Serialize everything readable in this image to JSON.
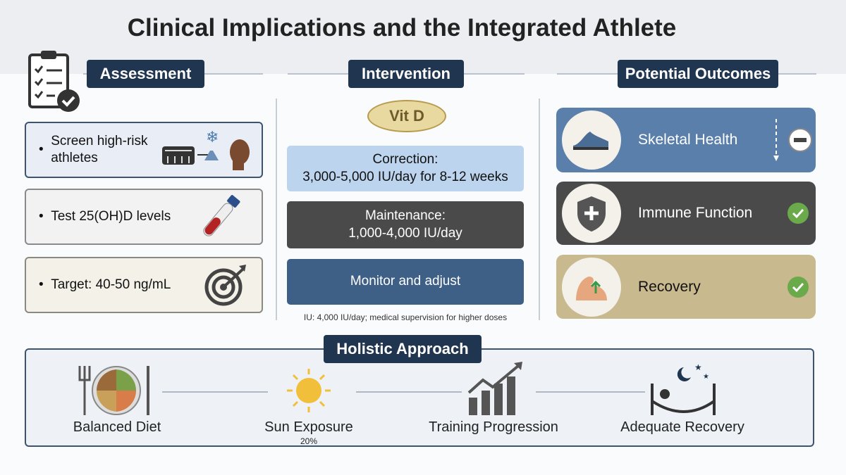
{
  "title": "Clinical Implications and the Integrated Athlete",
  "assessment": {
    "heading": "Assessment",
    "items": [
      "Screen high-risk athletes",
      "Test 25(OH)D levels",
      "Target: 40-50 ng/mL"
    ]
  },
  "intervention": {
    "heading": "Intervention",
    "badge": "Vit D",
    "steps": [
      {
        "label": "Correction:",
        "detail": "3,000-5,000 IU/day for 8-12 weeks"
      },
      {
        "label": "Maintenance:",
        "detail": "1,000-4,000 IU/day"
      },
      {
        "label": "Monitor and adjust"
      }
    ],
    "note": "IU: 4,000 IU/day; medical supervision for higher doses"
  },
  "outcomes": {
    "heading": "Potential Outcomes",
    "items": [
      "Skeletal Health",
      "Immune Function",
      "Recovery"
    ]
  },
  "holistic": {
    "heading": "Holistic Approach",
    "items": [
      "Balanced Diet",
      "Sun Exposure",
      "Training Progression",
      "Adequate Recovery"
    ],
    "sun_note": "20%"
  }
}
